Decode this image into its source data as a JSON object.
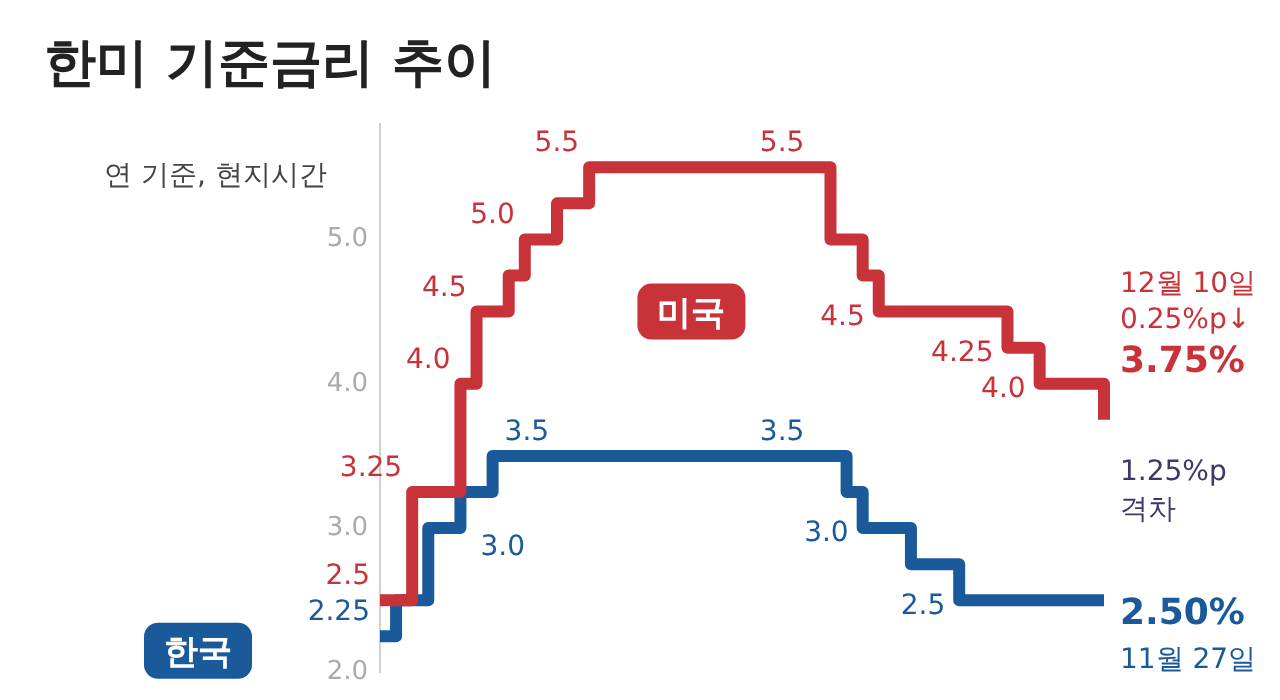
{
  "chart_data": {
    "type": "step",
    "title": "한미 기준금리 추이",
    "subtitle": "연 기준, 현지시간",
    "categories": [
      null,
      null,
      null,
      null,
      null,
      null,
      null,
      null,
      null,
      null,
      null,
      null,
      null,
      null,
      null,
      null,
      null,
      null,
      null,
      null,
      null,
      null,
      null,
      null,
      null,
      null,
      null,
      null,
      null,
      null,
      null,
      null,
      null,
      null,
      null,
      null,
      null,
      null,
      null,
      null,
      null,
      null,
      null,
      null,
      null,
      null
    ],
    "series": [
      {
        "name": "미국",
        "color": "#c8333a",
        "values": [
          2.5,
          2.5,
          3.25,
          3.25,
          3.25,
          4.0,
          4.5,
          4.5,
          4.75,
          5.0,
          5.0,
          5.25,
          5.25,
          5.5,
          5.5,
          5.5,
          5.5,
          5.5,
          5.5,
          5.5,
          5.5,
          5.5,
          5.5,
          5.5,
          5.5,
          5.5,
          5.5,
          5.5,
          5.0,
          5.0,
          4.75,
          4.5,
          4.5,
          4.5,
          4.5,
          4.5,
          4.5,
          4.5,
          4.5,
          4.25,
          4.25,
          4.0,
          4.0,
          4.0,
          4.0,
          3.75
        ],
        "value_labels": [
          "2.5",
          null,
          "3.25",
          null,
          null,
          "4.0",
          "4.5",
          null,
          null,
          "5.0",
          null,
          null,
          null,
          "5.5",
          null,
          null,
          null,
          null,
          null,
          null,
          null,
          null,
          null,
          null,
          null,
          null,
          null,
          "5.5",
          null,
          null,
          null,
          "4.5",
          null,
          null,
          null,
          null,
          null,
          null,
          null,
          "4.25",
          null,
          "4.0",
          null,
          null,
          null,
          null
        ]
      },
      {
        "name": "한국",
        "color": "#1a5a9a",
        "values": [
          2.25,
          2.5,
          2.5,
          3.0,
          3.0,
          3.25,
          3.25,
          3.5,
          3.5,
          3.5,
          3.5,
          3.5,
          3.5,
          3.5,
          3.5,
          3.5,
          3.5,
          3.5,
          3.5,
          3.5,
          3.5,
          3.5,
          3.5,
          3.5,
          3.5,
          3.5,
          3.5,
          3.5,
          3.5,
          3.25,
          3.0,
          3.0,
          3.0,
          2.75,
          2.75,
          2.75,
          2.5,
          2.5,
          2.5,
          2.5,
          2.5,
          2.5,
          2.5,
          2.5,
          2.5,
          2.5
        ],
        "value_labels": [
          "2.25",
          null,
          null,
          "3.0",
          null,
          null,
          null,
          "3.5",
          null,
          null,
          null,
          null,
          null,
          null,
          null,
          null,
          null,
          null,
          null,
          null,
          null,
          null,
          null,
          null,
          null,
          null,
          null,
          "3.5",
          null,
          null,
          "3.0",
          null,
          null,
          null,
          null,
          null,
          "2.5",
          null,
          null,
          null,
          null,
          null,
          null,
          null,
          null,
          null
        ]
      }
    ],
    "ylim": [
      2.0,
      5.8
    ],
    "yticks": [
      {
        "value": 2,
        "label": "2.0"
      },
      {
        "value": 3,
        "label": "3.0"
      },
      {
        "value": 4,
        "label": "4.0"
      },
      {
        "value": 5,
        "label": "5.0"
      }
    ],
    "tick_labels": "y",
    "grid": false,
    "legend": false,
    "marker": "none",
    "line_style": "solid",
    "annotations": [
      "12월 10일",
      "0.25%p↓",
      "3.75%",
      "1.25%p",
      "격차",
      "2.50%",
      "11월 27일"
    ]
  }
}
